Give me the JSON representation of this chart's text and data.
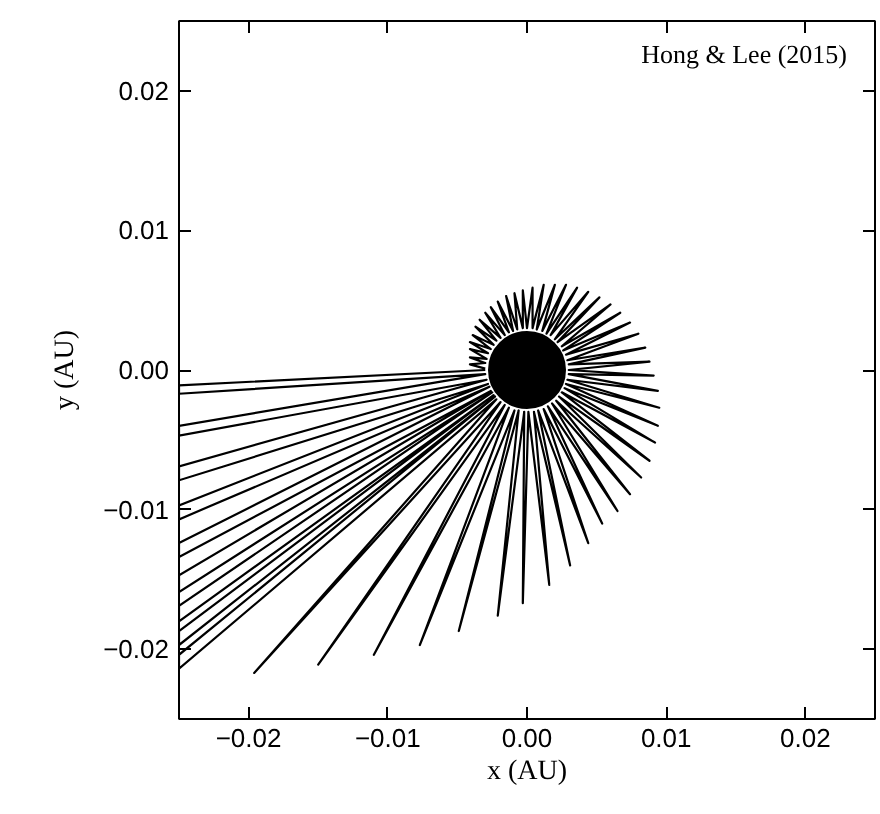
{
  "chart_data": {
    "type": "line",
    "xlabel": "x (AU)",
    "ylabel": "y (AU)",
    "annotations": [
      "Hong & Lee (2015)"
    ],
    "xlim": [
      -0.025,
      0.025
    ],
    "ylim": [
      -0.025,
      0.025
    ],
    "xticks": [
      {
        "value": -0.02,
        "label": "−0.02"
      },
      {
        "value": -0.01,
        "label": "−0.01"
      },
      {
        "value": 0,
        "label": "0.00"
      },
      {
        "value": 0.01,
        "label": "0.01"
      },
      {
        "value": 0.02,
        "label": "0.02"
      }
    ],
    "yticks": [
      {
        "value": -0.02,
        "label": "−0.02"
      },
      {
        "value": -0.01,
        "label": "−0.01"
      },
      {
        "value": 0,
        "label": "0.00"
      },
      {
        "value": 0.01,
        "label": "0.01"
      },
      {
        "value": 0.02,
        "label": "0.02"
      }
    ],
    "grid": false,
    "series": [
      {
        "color": "#000000",
        "x": [
          -0.003,
          -0.025,
          -0.025,
          -0.003,
          -0.025,
          -0.025,
          -0.0029,
          -0.025,
          -0.025,
          -0.0028,
          -0.025,
          -0.025,
          -0.0027,
          -0.025,
          -0.025,
          -0.0026,
          -0.025,
          -0.025,
          -0.0025,
          -0.025,
          -0.025,
          -0.0024,
          -0.025,
          -0.025,
          -0.0023,
          -0.025,
          -0.025,
          -0.0022,
          -0.0196,
          -0.0019,
          -0.015,
          -0.0016,
          -0.011,
          -0.0013,
          -0.0077,
          -0.0009,
          -0.0049,
          -0.0006,
          -0.0021,
          -0.0002,
          -0.0003,
          0.0001,
          0.0016,
          0.0005,
          0.0031,
          0.0008,
          0.0044,
          0.0012,
          0.0054,
          0.0015,
          0.0065,
          0.0018,
          0.0074,
          0.0021,
          0.0082,
          0.0023,
          0.0088,
          0.0025,
          0.0092,
          0.0027,
          0.0094,
          0.0028,
          0.0095,
          0.0029,
          0.0094,
          0.003,
          0.0091,
          0.003,
          0.0088,
          0.003,
          0.0085,
          0.0029,
          0.008,
          0.0028,
          0.0074,
          0.0026,
          0.0067,
          0.0025,
          0.006,
          0.0022,
          0.0052,
          0.002,
          0.0044,
          0.0017,
          0.0036,
          0.0014,
          0.0028,
          0.0011,
          0.002,
          0.0007,
          0.0012,
          0.0004,
          0.0004,
          0.0,
          -0.0003,
          -0.0003,
          -0.0009,
          -0.0007,
          -0.0015,
          -0.001,
          -0.0021,
          -0.0013,
          -0.0026,
          -0.0016,
          -0.003,
          -0.0019,
          -0.0034,
          -0.0022,
          -0.0037,
          -0.0024,
          -0.0039,
          -0.0026,
          -0.0041,
          -0.0028,
          -0.0041,
          -0.0029,
          -0.0041,
          -0.003,
          -0.0041,
          -0.003
        ],
        "values": [
          0.0,
          -0.0011,
          -0.0017,
          -0.0003,
          -0.004,
          -0.0047,
          -0.0007,
          -0.0069,
          -0.0079,
          -0.001,
          -0.0097,
          -0.0107,
          -0.0012,
          -0.0124,
          -0.0134,
          -0.0015,
          -0.0147,
          -0.0159,
          -0.0016,
          -0.0169,
          -0.018,
          -0.0018,
          -0.0187,
          -0.0197,
          -0.0019,
          -0.0204,
          -0.0214,
          -0.0021,
          -0.0217,
          -0.0023,
          -0.0211,
          -0.0025,
          -0.0204,
          -0.0027,
          -0.0197,
          -0.0029,
          -0.0187,
          -0.0029,
          -0.0176,
          -0.003,
          -0.0167,
          -0.003,
          -0.0154,
          -0.003,
          -0.014,
          -0.0029,
          -0.0124,
          -0.0028,
          -0.011,
          -0.0026,
          -0.0101,
          -0.0024,
          -0.0089,
          -0.0022,
          -0.0077,
          -0.0019,
          -0.0065,
          -0.0016,
          -0.0052,
          -0.0013,
          -0.004,
          -0.001,
          -0.0027,
          -0.0007,
          -0.0015,
          -0.0003,
          -0.0004,
          0.0,
          0.0006,
          0.0004,
          0.0016,
          0.0007,
          0.0026,
          0.0011,
          0.0034,
          0.0014,
          0.0041,
          0.0017,
          0.0047,
          0.002,
          0.0052,
          0.0022,
          0.0056,
          0.0025,
          0.0059,
          0.0026,
          0.0061,
          0.0028,
          0.0061,
          0.0029,
          0.0061,
          0.003,
          0.0059,
          0.003,
          0.0057,
          0.003,
          0.0055,
          0.0029,
          0.0053,
          0.0028,
          0.0049,
          0.0027,
          0.0045,
          0.0025,
          0.0041,
          0.0023,
          0.0036,
          0.0021,
          0.0031,
          0.0018,
          0.0025,
          0.0015,
          0.002,
          0.0012,
          0.0015,
          0.0008,
          0.0009,
          0.0005,
          0.0004,
          0.0001
        ]
      },
      {
        "type": "scatter",
        "marker": "circle",
        "color": "#000000",
        "x": [
          0.0
        ],
        "values": [
          0.0
        ]
      }
    ]
  }
}
